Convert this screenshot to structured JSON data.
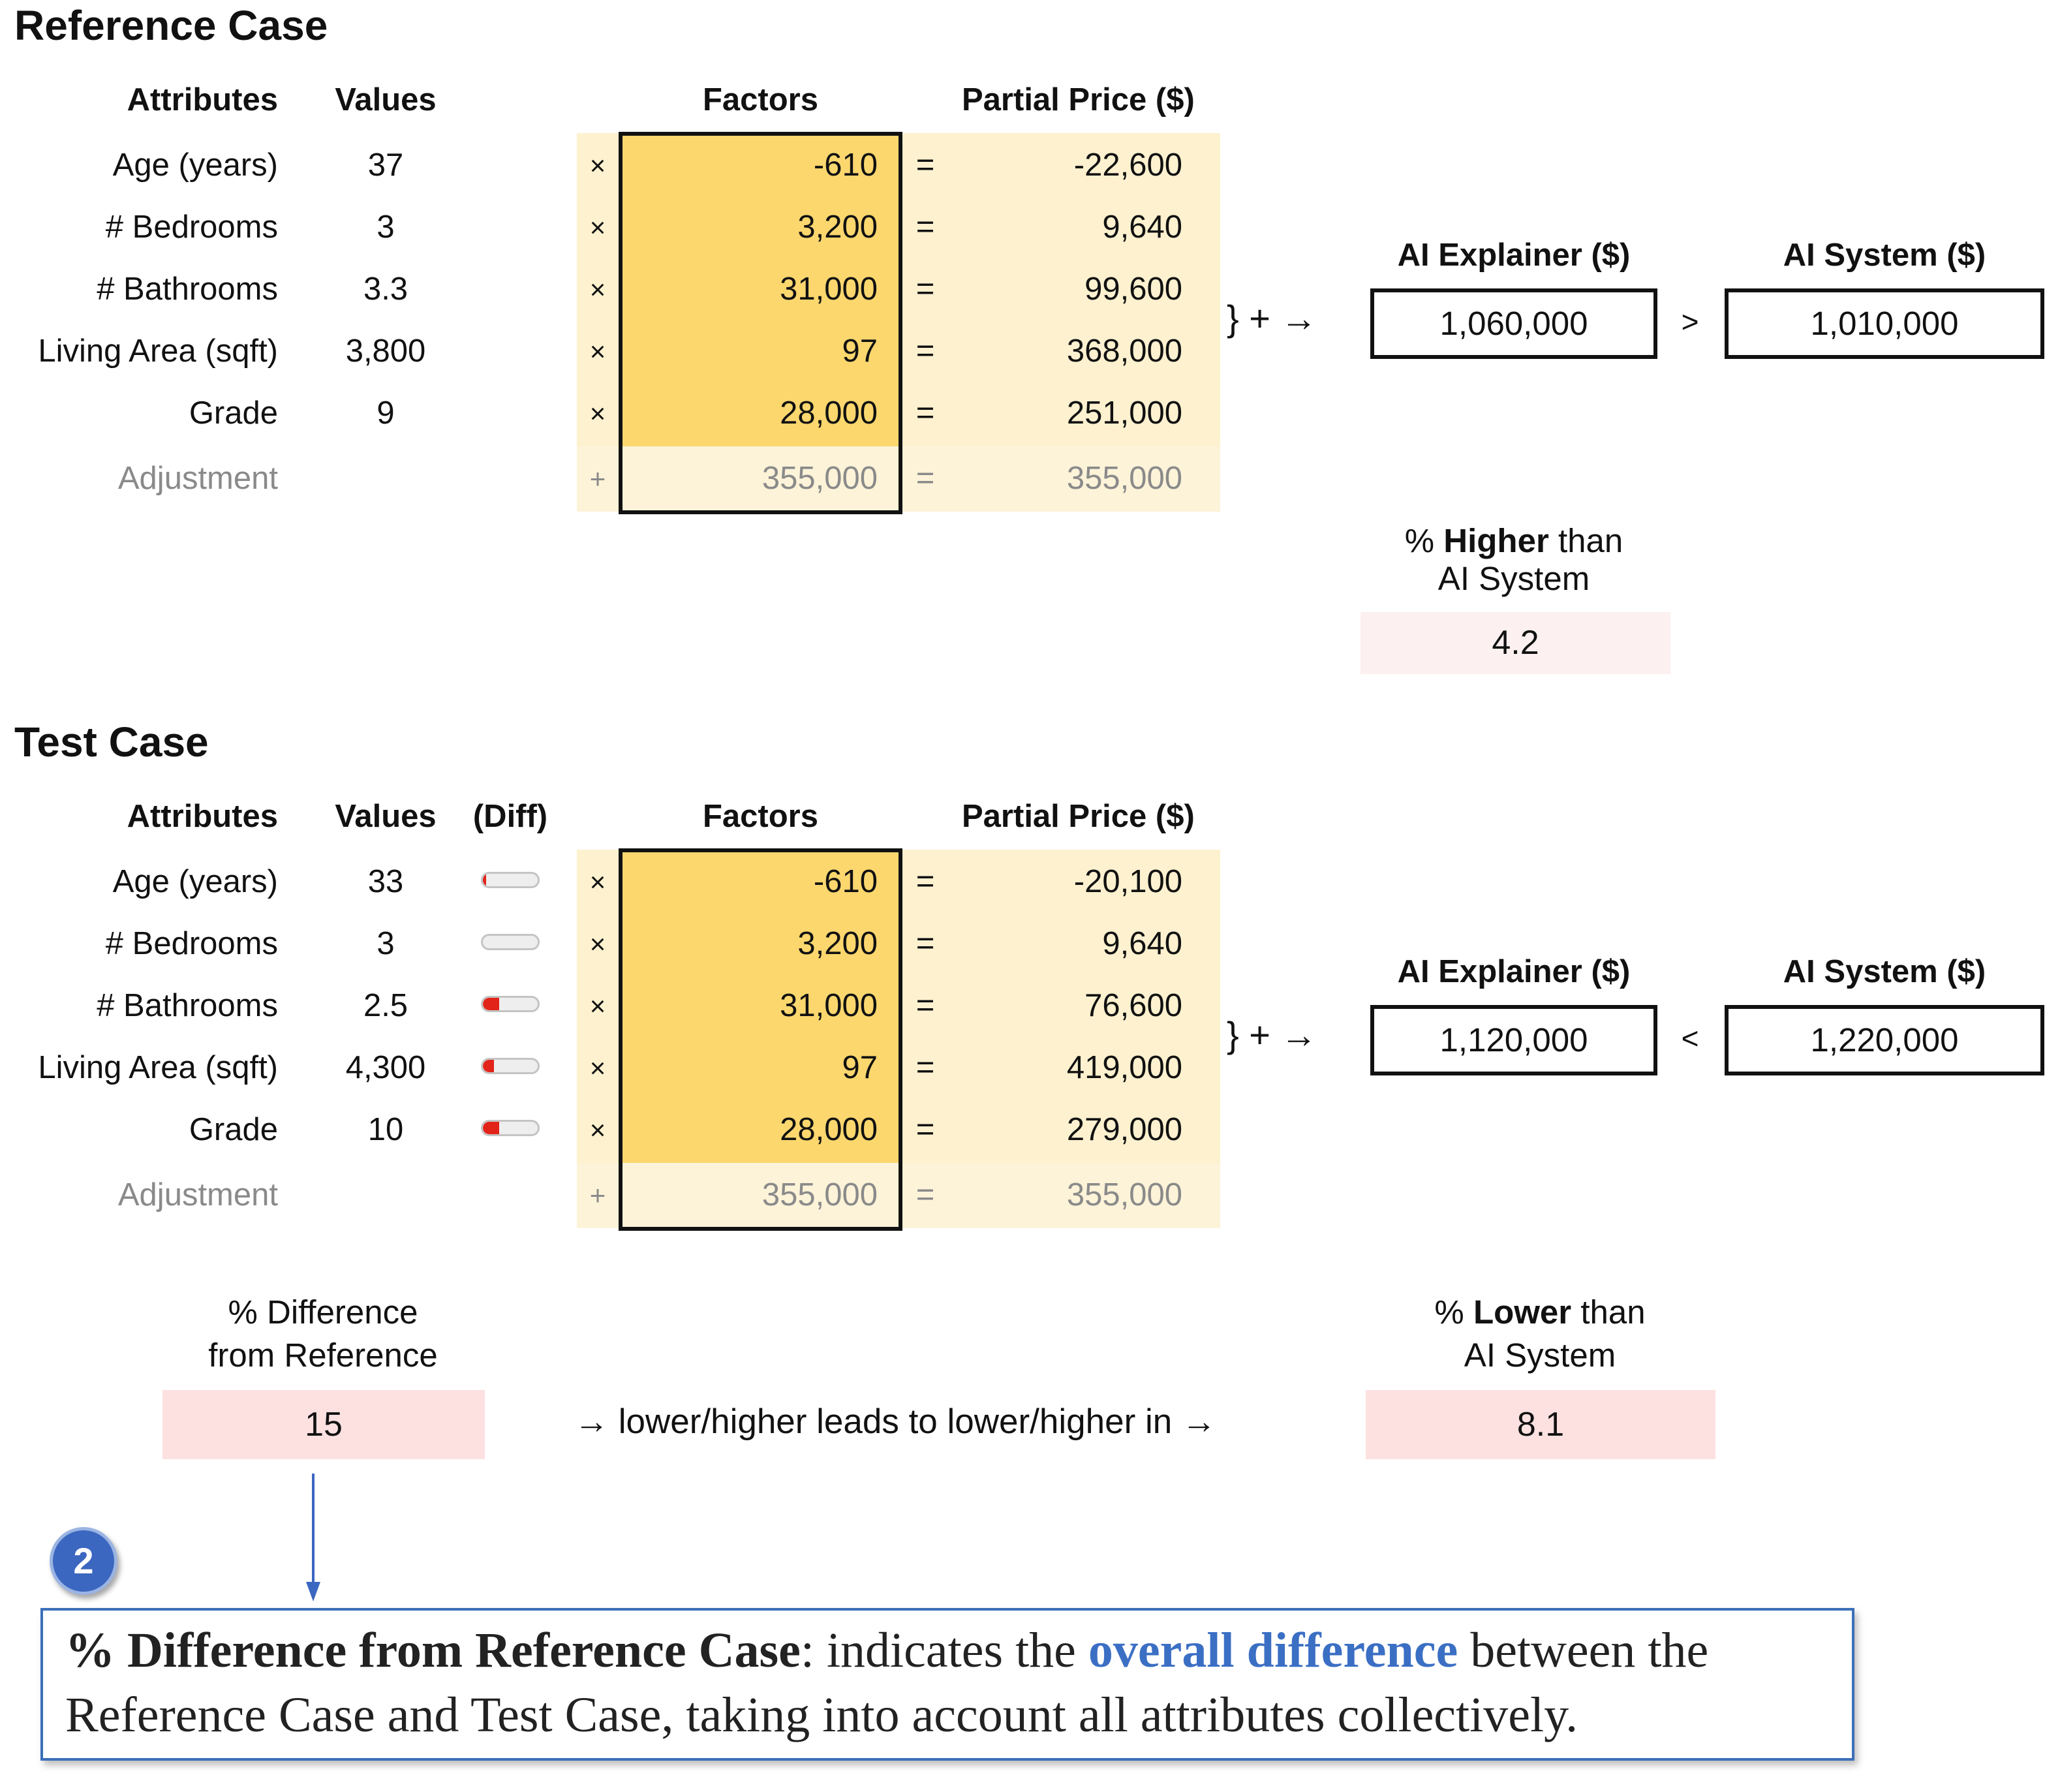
{
  "reference": {
    "title": "Reference Case",
    "headers": {
      "attributes": "Attributes",
      "values": "Values",
      "factors": "Factors",
      "partial": "Partial Price ($)"
    },
    "rows": [
      {
        "label": "Age (years)",
        "value": "37",
        "op": "×",
        "factor": "-610",
        "eq": "=",
        "partial": "-22,600"
      },
      {
        "label": "# Bedrooms",
        "value": "3",
        "op": "×",
        "factor": "3,200",
        "eq": "=",
        "partial": "9,640"
      },
      {
        "label": "# Bathrooms",
        "value": "3.3",
        "op": "×",
        "factor": "31,000",
        "eq": "=",
        "partial": "99,600"
      },
      {
        "label": "Living Area (sqft)",
        "value": "3,800",
        "op": "×",
        "factor": "97",
        "eq": "=",
        "partial": "368,000"
      },
      {
        "label": "Grade",
        "value": "9",
        "op": "×",
        "factor": "28,000",
        "eq": "=",
        "partial": "251,000"
      }
    ],
    "adjustment": {
      "label": "Adjustment",
      "op": "+",
      "factor": "355,000",
      "eq": "=",
      "partial": "355,000"
    },
    "sum_glyphs": "}  +  →",
    "explainer_header": "AI Explainer ($)",
    "explainer_value": "1,060,000",
    "comparison": ">",
    "system_header": "AI System ($)",
    "system_value": "1,010,000",
    "pct": {
      "prefix": "%",
      "bold": "Higher",
      "suffix": "than",
      "line2": "AI System",
      "value": "4.2"
    }
  },
  "test": {
    "title": "Test Case",
    "headers": {
      "attributes": "Attributes",
      "values": "Values",
      "diff": "(Diff)",
      "factors": "Factors",
      "partial": "Partial Price ($)"
    },
    "rows": [
      {
        "label": "Age (years)",
        "value": "33",
        "diff_level": 0.06,
        "op": "×",
        "factor": "-610",
        "eq": "=",
        "partial": "-20,100"
      },
      {
        "label": "# Bedrooms",
        "value": "3",
        "diff_level": 0,
        "op": "×",
        "factor": "3,200",
        "eq": "=",
        "partial": "9,640"
      },
      {
        "label": "# Bathrooms",
        "value": "2.5",
        "diff_level": 0.3,
        "op": "×",
        "factor": "31,000",
        "eq": "=",
        "partial": "76,600"
      },
      {
        "label": "Living Area (sqft)",
        "value": "4,300",
        "diff_level": 0.2,
        "op": "×",
        "factor": "97",
        "eq": "=",
        "partial": "419,000"
      },
      {
        "label": "Grade",
        "value": "10",
        "diff_level": 0.3,
        "op": "×",
        "factor": "28,000",
        "eq": "=",
        "partial": "279,000"
      }
    ],
    "adjustment": {
      "label": "Adjustment",
      "op": "+",
      "factor": "355,000",
      "eq": "=",
      "partial": "355,000"
    },
    "sum_glyphs": "}  +  →",
    "explainer_header": "AI Explainer ($)",
    "explainer_value": "1,120,000",
    "comparison": "<",
    "system_header": "AI System ($)",
    "system_value": "1,220,000",
    "pct_diff": {
      "line1": "% Difference",
      "line2": "from Reference",
      "value": "15"
    },
    "flow_text": "→ lower/higher leads to lower/higher in →",
    "pct": {
      "prefix": "%",
      "bold": "Lower",
      "suffix": "than",
      "line2": "AI System",
      "value": "8.1"
    }
  },
  "callout": {
    "number": "2",
    "bold": "% Difference from Reference Case",
    "text1": ": indicates the ",
    "highlight": "overall difference",
    "text2": " between the Reference Case and Test Case, taking into account all attributes collectively."
  },
  "colors": {
    "factor_fill": "#fbd76e",
    "partial_fill": "#fdf1cf",
    "pct_fill": "#fde1e1",
    "diff_bar": "#e2231a",
    "callout_blue": "#3b6fc4"
  }
}
